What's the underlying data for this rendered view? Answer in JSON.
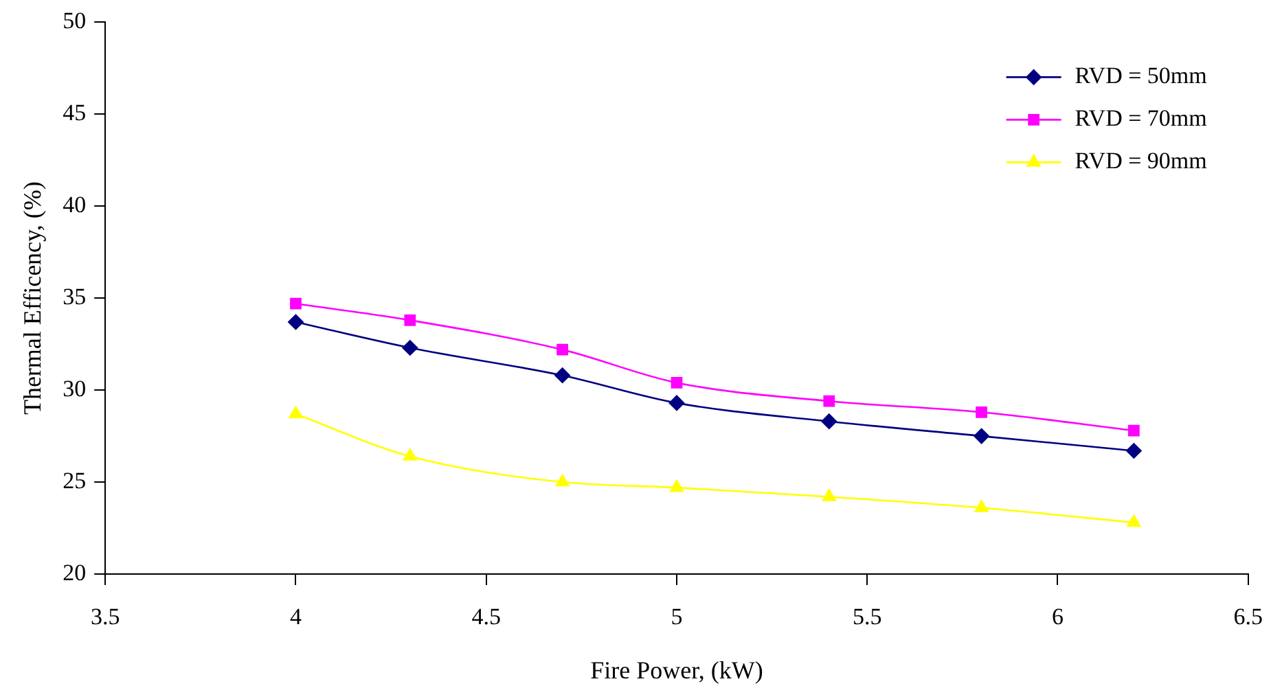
{
  "chart_data": {
    "type": "line",
    "xlabel": "Fire Power, (kW)",
    "ylabel": "Thermal Efficency, (%)",
    "x": [
      4,
      4.3,
      4.7,
      5,
      5.4,
      5.8,
      6.2
    ],
    "series": [
      {
        "name": "RVD = 50mm",
        "color": "#000080",
        "marker": "diamond",
        "values": [
          33.7,
          32.3,
          30.8,
          29.3,
          28.3,
          27.5,
          26.7
        ]
      },
      {
        "name": "RVD = 70mm",
        "color": "#ff00ff",
        "marker": "square",
        "values": [
          34.7,
          33.8,
          32.2,
          30.4,
          29.4,
          28.8,
          27.8
        ]
      },
      {
        "name": "RVD = 90mm",
        "color": "#ffff00",
        "marker": "triangle",
        "values": [
          28.7,
          26.4,
          25.0,
          24.7,
          24.2,
          23.6,
          22.8
        ]
      }
    ],
    "xlim": [
      3.5,
      6.5
    ],
    "xticks": [
      3.5,
      4,
      4.5,
      5,
      5.5,
      6,
      6.5
    ],
    "ylim": [
      20,
      50
    ],
    "yticks": [
      20,
      25,
      30,
      35,
      40,
      45,
      50
    ],
    "grid": false,
    "legend": "top right",
    "line_style": "solid"
  }
}
